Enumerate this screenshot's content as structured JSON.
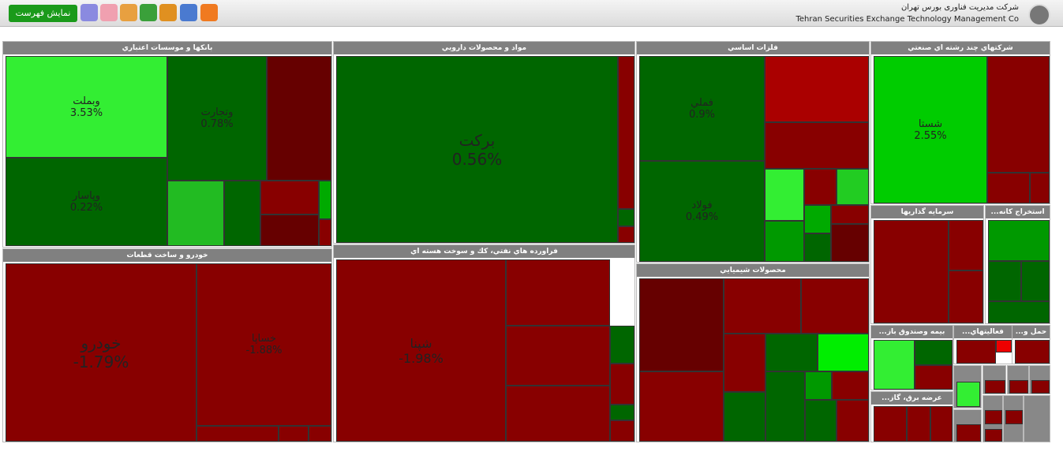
{
  "header": {
    "button": "نمایش فهرست",
    "company_fa": "شرکت مدیریت فناوری بورس تهران",
    "company_en": "Tehran Securities Exchange Technology Management Co"
  },
  "sectors": [
    {
      "title": "بانكها و موسسات اعتباري",
      "tiles": [
        {
          "label": "وبملت",
          "pct": "3.53%"
        },
        {
          "label": "وپاسار",
          "pct": "0.22%"
        },
        {
          "label": "وتجارت",
          "pct": "0.78%"
        }
      ]
    },
    {
      "title": "خودرو و ساخت قطعات",
      "tiles": [
        {
          "label": "خودرو",
          "pct": "-1.79%"
        },
        {
          "label": "خساپا",
          "pct": "-1.88%"
        }
      ]
    },
    {
      "title": "مواد و محصولات دارويي",
      "tiles": [
        {
          "label": "بركت",
          "pct": "0.56%"
        }
      ]
    },
    {
      "title": "فراورده هاي نفتي، كك و سوخت هسته اي",
      "tiles": [
        {
          "label": "شپنا",
          "pct": "-1.98%"
        }
      ]
    },
    {
      "title": "فلزات اساسي",
      "tiles": [
        {
          "label": "فملي",
          "pct": "0.9%"
        },
        {
          "label": "فولاد",
          "pct": "0.49%"
        }
      ]
    },
    {
      "title": "محصولات شيميايي",
      "tiles": []
    },
    {
      "title": "شركتهاي چند رشته اي صنعتي",
      "tiles": [
        {
          "label": "شستا",
          "pct": "2.55%"
        }
      ]
    },
    {
      "title": "سرمايه گذاريها",
      "tiles": []
    },
    {
      "title": "استخراج كانه...",
      "tiles": []
    },
    {
      "title": "بيمه وصندوق باز...",
      "tiles": []
    },
    {
      "title": "فعاليتهاي...",
      "tiles": []
    },
    {
      "title": "حمل و...",
      "tiles": []
    },
    {
      "title": "عرضه برق، گاز...",
      "tiles": []
    }
  ]
}
